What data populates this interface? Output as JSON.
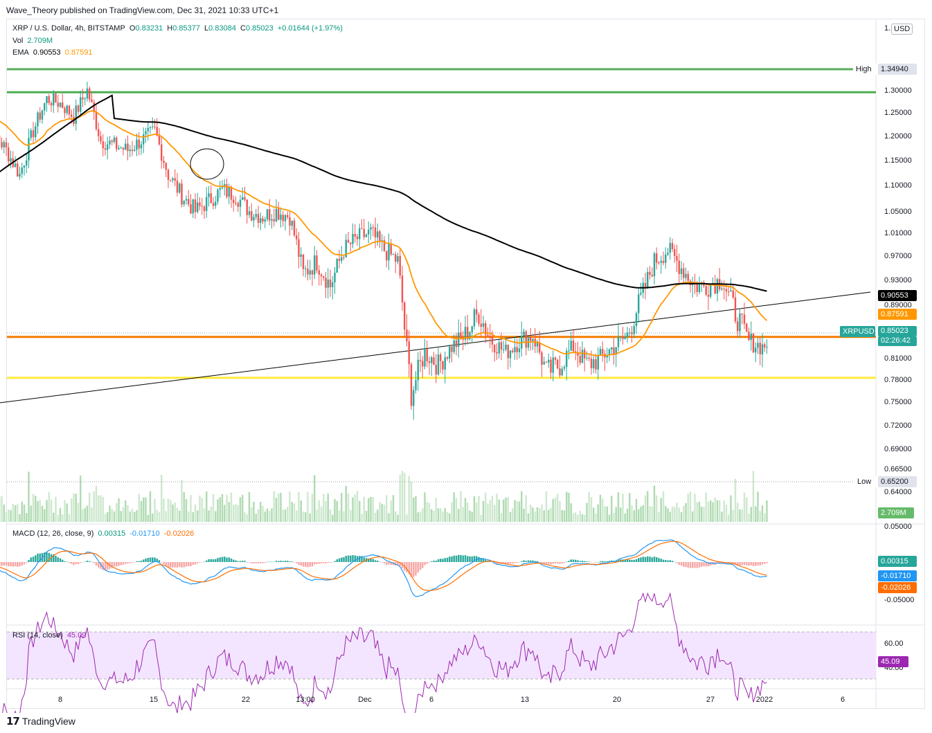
{
  "publisher": "Wave_Theory published on TradingView.com, Dec 31, 2021 10:33 UTC+1",
  "currency": "USD",
  "legend": {
    "symbol": "XRP / U.S. Dollar, 4h, BITSTAMP",
    "o_label": "O",
    "o_value": "0.83231",
    "h_label": "H",
    "h_value": "0.85377",
    "l_label": "L",
    "l_value": "0.83084",
    "c_label": "C",
    "c_value": "0.85023",
    "change": "+0.01644 (+1.97%)",
    "vol_label": "Vol",
    "vol_value": "2.709M",
    "ema_label": "EMA",
    "ema_value1": "0.90553",
    "ema_value2": "0.87591"
  },
  "badges": {
    "high_label": "High",
    "high_value": "1.34940",
    "low_label": "Low",
    "low_value": "0.65200",
    "ema_black": "0.90553",
    "ema_orange": "0.87591",
    "symbol_label": "XRPUSD",
    "last_price": "0.85023",
    "countdown": "02:26:42",
    "volume": "2.709M",
    "macd_hist": "0.00315",
    "macd_line": "-0.01710",
    "macd_signal": "-0.02026",
    "rsi": "45.09"
  },
  "macd_legend": {
    "label": "MACD (12, 26, close, 9)",
    "v1": "0.00315",
    "v2": "-0.01710",
    "v3": "-0.02026"
  },
  "rsi_legend": {
    "label": "RSI (14, close)",
    "v1": "45.09"
  },
  "footer": {
    "brand": "TradingView"
  },
  "colors": {
    "up": "#26a69a",
    "down": "#ef5350",
    "ema_fast": "#ff9800",
    "ema_slow": "#000000",
    "green_level": "#4caf50",
    "orange_level": "#f57c00",
    "yellow_level": "#ffeb3b",
    "macd": "#2196f3",
    "signal": "#ff6d00",
    "rsi": "#9c27b0",
    "rsi_band": "#f3e5ff"
  },
  "chart_data": [
    {
      "type": "candlestick",
      "symbol": "XRP / U.S. Dollar, 4h, BITSTAMP",
      "y_ticks": [
        "1.30000",
        "1.25000",
        "1.20000",
        "1.15000",
        "1.10000",
        "1.05000",
        "1.01000",
        "0.97000",
        "0.93000",
        "0.89000",
        "0.81000",
        "0.78000",
        "0.75000",
        "0.72000",
        "0.69000",
        "0.66500",
        "0.64000"
      ],
      "x_ticks": [
        "8",
        "15",
        "22",
        "13:00",
        "Dec",
        "6",
        "13",
        "20",
        "27",
        "2022",
        "6"
      ],
      "ylim": [
        0.63,
        1.37
      ],
      "horizontal_levels": [
        {
          "value": 1.3494,
          "color": "green"
        },
        {
          "value": 1.295,
          "color": "green"
        },
        {
          "value": 0.848,
          "color": "orange"
        },
        {
          "value": 0.782,
          "color": "yellow"
        }
      ],
      "trendline": {
        "from": {
          "x": "Nov 2",
          "y": 0.745
        },
        "to": {
          "x": "Jan 7",
          "y": 0.91
        }
      },
      "price_path": [
        [
          "Nov 2",
          1.25
        ],
        [
          "Nov 4",
          1.17
        ],
        [
          "Nov 5",
          1.12
        ],
        [
          "Nov 6",
          1.21
        ],
        [
          "Nov 7",
          1.28
        ],
        [
          "Nov 8",
          1.27
        ],
        [
          "Nov 9",
          1.24
        ],
        [
          "Nov 10",
          1.3
        ],
        [
          "Nov 11",
          1.19
        ],
        [
          "Nov 12",
          1.18
        ],
        [
          "Nov 13",
          1.17
        ],
        [
          "Nov 14",
          1.19
        ],
        [
          "Nov 15",
          1.21
        ],
        [
          "Nov 16",
          1.12
        ],
        [
          "Nov 17",
          1.08
        ],
        [
          "Nov 18",
          1.05
        ],
        [
          "Nov 19",
          1.07
        ],
        [
          "Nov 20",
          1.09
        ],
        [
          "Nov 21",
          1.08
        ],
        [
          "Nov 22",
          1.05
        ],
        [
          "Nov 23",
          1.04
        ],
        [
          "Nov 24",
          1.05
        ],
        [
          "Nov 25",
          1.04
        ],
        [
          "Nov 26",
          0.94
        ],
        [
          "Nov 27",
          0.96
        ],
        [
          "Nov 28",
          0.92
        ],
        [
          "Nov 29",
          0.98
        ],
        [
          "Nov 30",
          1.0
        ],
        [
          "Dec 1",
          1.01
        ],
        [
          "Dec 2",
          0.98
        ],
        [
          "Dec 3",
          0.96
        ],
        [
          "Dec 4",
          0.76
        ],
        [
          "Dec 5",
          0.82
        ],
        [
          "Dec 6",
          0.8
        ],
        [
          "Dec 7",
          0.83
        ],
        [
          "Dec 8",
          0.85
        ],
        [
          "Dec 9",
          0.88
        ],
        [
          "Dec 10",
          0.84
        ],
        [
          "Dec 11",
          0.82
        ],
        [
          "Dec 12",
          0.84
        ],
        [
          "Dec 13",
          0.85
        ],
        [
          "Dec 14",
          0.79
        ],
        [
          "Dec 15",
          0.8
        ],
        [
          "Dec 16",
          0.83
        ],
        [
          "Dec 17",
          0.8
        ],
        [
          "Dec 18",
          0.81
        ],
        [
          "Dec 19",
          0.83
        ],
        [
          "Dec 20",
          0.85
        ],
        [
          "Dec 21",
          0.9
        ],
        [
          "Dec 22",
          0.96
        ],
        [
          "Dec 23",
          0.98
        ],
        [
          "Dec 24",
          0.95
        ],
        [
          "Dec 25",
          0.92
        ],
        [
          "Dec 26",
          0.92
        ],
        [
          "Dec 27",
          0.93
        ],
        [
          "Dec 28",
          0.88
        ],
        [
          "Dec 29",
          0.84
        ],
        [
          "Dec 30",
          0.83
        ],
        [
          "Dec 31",
          0.85023
        ]
      ]
    },
    {
      "type": "bar",
      "series": [
        {
          "name": "Vol",
          "last": "2.709M"
        }
      ]
    },
    {
      "type": "line",
      "title": "MACD (12, 26, close, 9)",
      "y_ticks": [
        "0.05000",
        "-0.05000"
      ],
      "last_values": {
        "histogram": 0.00315,
        "macd": -0.0171,
        "signal": -0.02026
      }
    },
    {
      "type": "line",
      "title": "RSI (14, close)",
      "y_ticks": [
        "60.00",
        "40.00"
      ],
      "last_value": 45.09
    }
  ]
}
